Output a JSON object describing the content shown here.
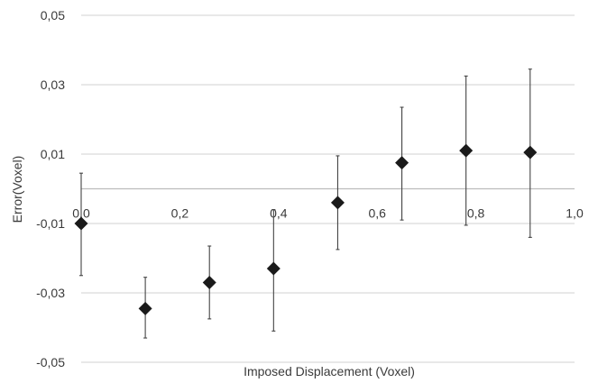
{
  "chart_data": {
    "type": "scatter",
    "title": "",
    "xlabel": "Imposed Displacement (Voxel)",
    "ylabel": "Error(Voxel)",
    "xlim": [
      0,
      1
    ],
    "ylim": [
      -0.05,
      0.05
    ],
    "grid": "horizontal",
    "x_ticks": [
      "0,0",
      "0,2",
      "0,4",
      "0,6",
      "0,8",
      "1,0"
    ],
    "y_ticks": [
      "0,05",
      "0,03",
      "0,01",
      "-0,01",
      "-0,03",
      "-0,05"
    ],
    "series": [
      {
        "marker": "diamond",
        "color": "#1a1a1a",
        "points": [
          {
            "x": 0.0,
            "y": -0.01,
            "err_low": -0.025,
            "err_high": 0.0045
          },
          {
            "x": 0.13,
            "y": -0.0345,
            "err_low": -0.043,
            "err_high": -0.0255
          },
          {
            "x": 0.26,
            "y": -0.027,
            "err_low": -0.0375,
            "err_high": -0.0165
          },
          {
            "x": 0.39,
            "y": -0.023,
            "err_low": -0.041,
            "err_high": -0.006
          },
          {
            "x": 0.52,
            "y": -0.004,
            "err_low": -0.0175,
            "err_high": 0.0095
          },
          {
            "x": 0.65,
            "y": 0.0075,
            "err_low": -0.009,
            "err_high": 0.0235
          },
          {
            "x": 0.78,
            "y": 0.011,
            "err_low": -0.0105,
            "err_high": 0.0325
          },
          {
            "x": 0.91,
            "y": 0.0105,
            "err_low": -0.014,
            "err_high": 0.0345
          }
        ]
      }
    ]
  }
}
